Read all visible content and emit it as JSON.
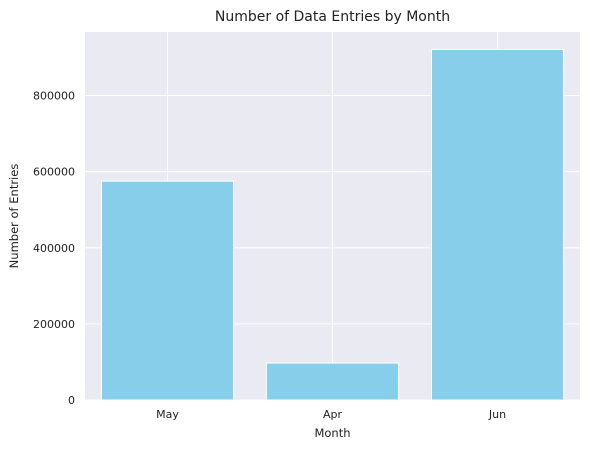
{
  "chart_data": {
    "type": "bar",
    "title": "Number of Data Entries by Month",
    "xlabel": "Month",
    "ylabel": "Number of Entries",
    "categories": [
      "May",
      "Apr",
      "Jun"
    ],
    "values": [
      575000,
      97000,
      921000
    ],
    "ylim": [
      0,
      967000
    ],
    "yticks": [
      0,
      200000,
      400000,
      600000,
      800000
    ],
    "ytick_labels": [
      "0",
      "200000",
      "400000",
      "600000",
      "800000"
    ],
    "grid": true,
    "legend": "none",
    "colors": {
      "bar": "#87CEEB",
      "plot_background": "#EAEAF2",
      "grid": "#FFFFFF",
      "text": "#222222"
    }
  }
}
